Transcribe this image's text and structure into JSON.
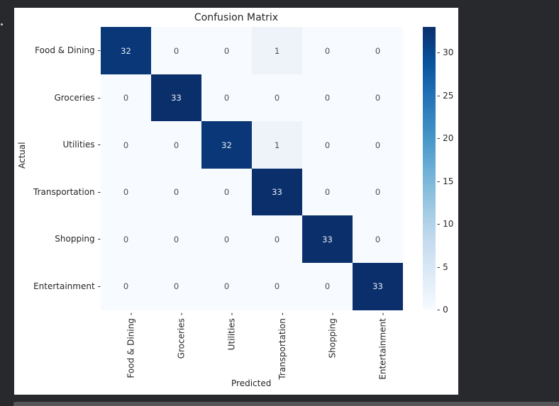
{
  "chart_data": {
    "type": "heatmap",
    "title": "Confusion Matrix",
    "xlabel": "Predicted",
    "ylabel": "Actual",
    "x_categories": [
      "Food & Dining",
      "Groceries",
      "Utilities",
      "Transportation",
      "Shopping",
      "Entertainment"
    ],
    "y_categories": [
      "Food & Dining",
      "Groceries",
      "Utilities",
      "Transportation",
      "Shopping",
      "Entertainment"
    ],
    "matrix": [
      [
        32,
        0,
        0,
        1,
        0,
        0
      ],
      [
        0,
        33,
        0,
        0,
        0,
        0
      ],
      [
        0,
        0,
        32,
        1,
        0,
        0
      ],
      [
        0,
        0,
        0,
        33,
        0,
        0
      ],
      [
        0,
        0,
        0,
        0,
        33,
        0
      ],
      [
        0,
        0,
        0,
        0,
        0,
        33
      ]
    ],
    "colorbar": {
      "colormap": "Blues",
      "range": [
        0,
        33
      ],
      "ticks": [
        0,
        5,
        10,
        15,
        20,
        25,
        30
      ]
    },
    "annotations": true,
    "grid": false
  },
  "colors": {
    "low": "#f7fbff",
    "high": "#0b2f6b",
    "annotation_dark": "#4d4d4d",
    "annotation_light": "#e8eef8",
    "panel_background": "#ffffff",
    "page_background": "#28292c"
  }
}
